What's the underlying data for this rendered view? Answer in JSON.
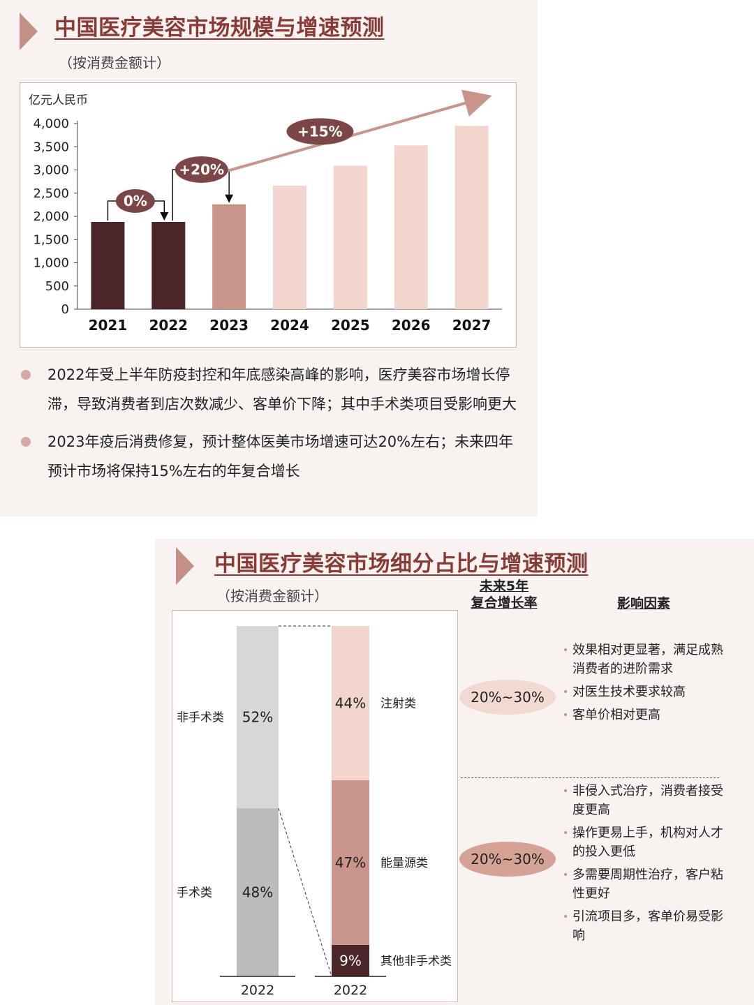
{
  "top": {
    "title": "中国医疗美容市场规模与增速预测",
    "subtitle": "（按消费金额计）",
    "bullets": [
      "2022年受上半年防疫封控和年底感染高峰的影响，医疗美容市场增长停滞，导致消费者到店次数减少、客单价下降；其中手术类项目受影响更大",
      "2023年疫后消费修复，预计整体医美市场增速可达20%左右；未来四年预计市场将保持15%左右的年复合增长"
    ]
  },
  "bottom": {
    "title": "中国医疗美容市场细分占比与增速预测",
    "subtitle": "（按消费金额计）",
    "cagr_header": "未来5年\n复合增长率",
    "factors_header": "影响因素",
    "groups": [
      {
        "cagr": "20%~30%",
        "cagr_color": "#f2d9d2",
        "factors": [
          "效果相对更显著，满足成熟消费者的进阶需求",
          "对医生技术要求较高",
          "客单价相对更高"
        ]
      },
      {
        "cagr": "20%~30%",
        "cagr_color": "#d4a396",
        "factors": [
          "非侵入式治疗，消费者接受度更高",
          "操作更易上手，机构对人才的投入更低",
          "多需要周期性治疗，客户粘性更好",
          "引流项目多，客单价易受影响"
        ]
      }
    ]
  },
  "colors": {
    "dark": "#4a2629",
    "mid": "#c9958a",
    "light": "#f2d6ce",
    "arrow": "#c9958a",
    "bubble": "#7c4646",
    "gray_light": "#d7d8da",
    "gray_dark": "#bcbcbc"
  },
  "chart_data": [
    {
      "type": "bar",
      "ylabel": "亿元人民币",
      "ylim": [
        0,
        4000
      ],
      "yticks": [
        "0",
        "500",
        "1,000",
        "1,500",
        "2,000",
        "2,500",
        "3,000",
        "3,500",
        "4,000"
      ],
      "categories": [
        "2021",
        "2022",
        "2023",
        "2024",
        "2025",
        "2026",
        "2027"
      ],
      "values": [
        1880,
        1880,
        2260,
        2660,
        3090,
        3530,
        3950
      ],
      "bar_colors": [
        "dark",
        "dark",
        "mid",
        "light",
        "light",
        "light",
        "light"
      ],
      "annotations": [
        "0%",
        "+20%",
        "+15%"
      ]
    },
    {
      "type": "stacked_bar",
      "categories": [
        "2022",
        "2022"
      ],
      "bars": [
        {
          "segments": [
            {
              "label": "手术类",
              "value": 48,
              "text": "48%",
              "color": "gray_dark"
            },
            {
              "label": "非手术类",
              "value": 52,
              "text": "52%",
              "color": "gray_light"
            }
          ]
        },
        {
          "segments": [
            {
              "label": "其他非手术类",
              "value": 9,
              "text": "9%",
              "color": "dark"
            },
            {
              "label": "能量源类",
              "value": 47,
              "text": "47%",
              "color": "mid"
            },
            {
              "label": "注射类",
              "value": 44,
              "text": "44%",
              "color": "light"
            }
          ]
        }
      ]
    }
  ]
}
